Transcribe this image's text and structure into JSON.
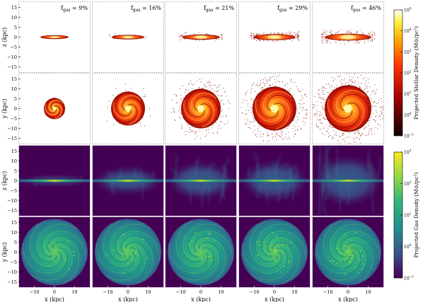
{
  "chart_data": {
    "type": "heatmap",
    "title": "",
    "panels": {
      "columns": [
        {
          "label": "f",
          "sub": "gas",
          "value": " = 9%",
          "fgas": 9
        },
        {
          "label": "f",
          "sub": "gas",
          "value": " = 16%",
          "fgas": 16
        },
        {
          "label": "f",
          "sub": "gas",
          "value": " = 21%",
          "fgas": 21
        },
        {
          "label": "f",
          "sub": "gas",
          "value": " = 29%",
          "fgas": 29
        },
        {
          "label": "f",
          "sub": "gas",
          "value": " = 46%",
          "fgas": 46
        }
      ],
      "rows": [
        {
          "quantity": "stellar",
          "projection": "edge-on",
          "ylabel": "z (kpc)"
        },
        {
          "quantity": "stellar",
          "projection": "face-on",
          "ylabel": "y (kpc)"
        },
        {
          "quantity": "gas",
          "projection": "edge-on",
          "ylabel": "z (kpc)"
        },
        {
          "quantity": "gas",
          "projection": "face-on",
          "ylabel": "y (kpc)"
        }
      ]
    },
    "xlabel": "x (kpc)",
    "xlim": [
      -18,
      18
    ],
    "ylim": [
      -18,
      18
    ],
    "xticks": [
      -10,
      0,
      10
    ],
    "xtick_labels": [
      "−10",
      "0",
      "10"
    ],
    "yticks": [
      15,
      10,
      5,
      0,
      -5,
      -10,
      -15
    ],
    "ytick_labels": [
      "15",
      "10",
      "5",
      "0",
      "−5",
      "−10",
      "−15"
    ],
    "colorbars": [
      {
        "label": "Projected Stellar Density (M⊙/pc²)",
        "scale": "log",
        "range": [
          0.1,
          100000
        ],
        "ticks": [
          {
            "base": "10",
            "exp": "5"
          },
          {
            "base": "10",
            "exp": "4"
          },
          {
            "base": "10",
            "exp": "3"
          },
          {
            "base": "10",
            "exp": "2"
          },
          {
            "base": "10",
            "exp": "1"
          },
          {
            "base": "10",
            "exp": "0"
          },
          {
            "base": "10",
            "exp": "−1"
          }
        ],
        "colormap": "hot"
      },
      {
        "label": "Projected Gas Density (M⊙/pc²)",
        "scale": "log",
        "range": [
          0.1,
          1000
        ],
        "ticks": [
          {
            "base": "10",
            "exp": "3"
          },
          {
            "base": "10",
            "exp": "2"
          },
          {
            "base": "10",
            "exp": "1"
          },
          {
            "base": "10",
            "exp": "0"
          },
          {
            "base": "10",
            "exp": "−1"
          }
        ],
        "colormap": "viridis"
      }
    ]
  }
}
